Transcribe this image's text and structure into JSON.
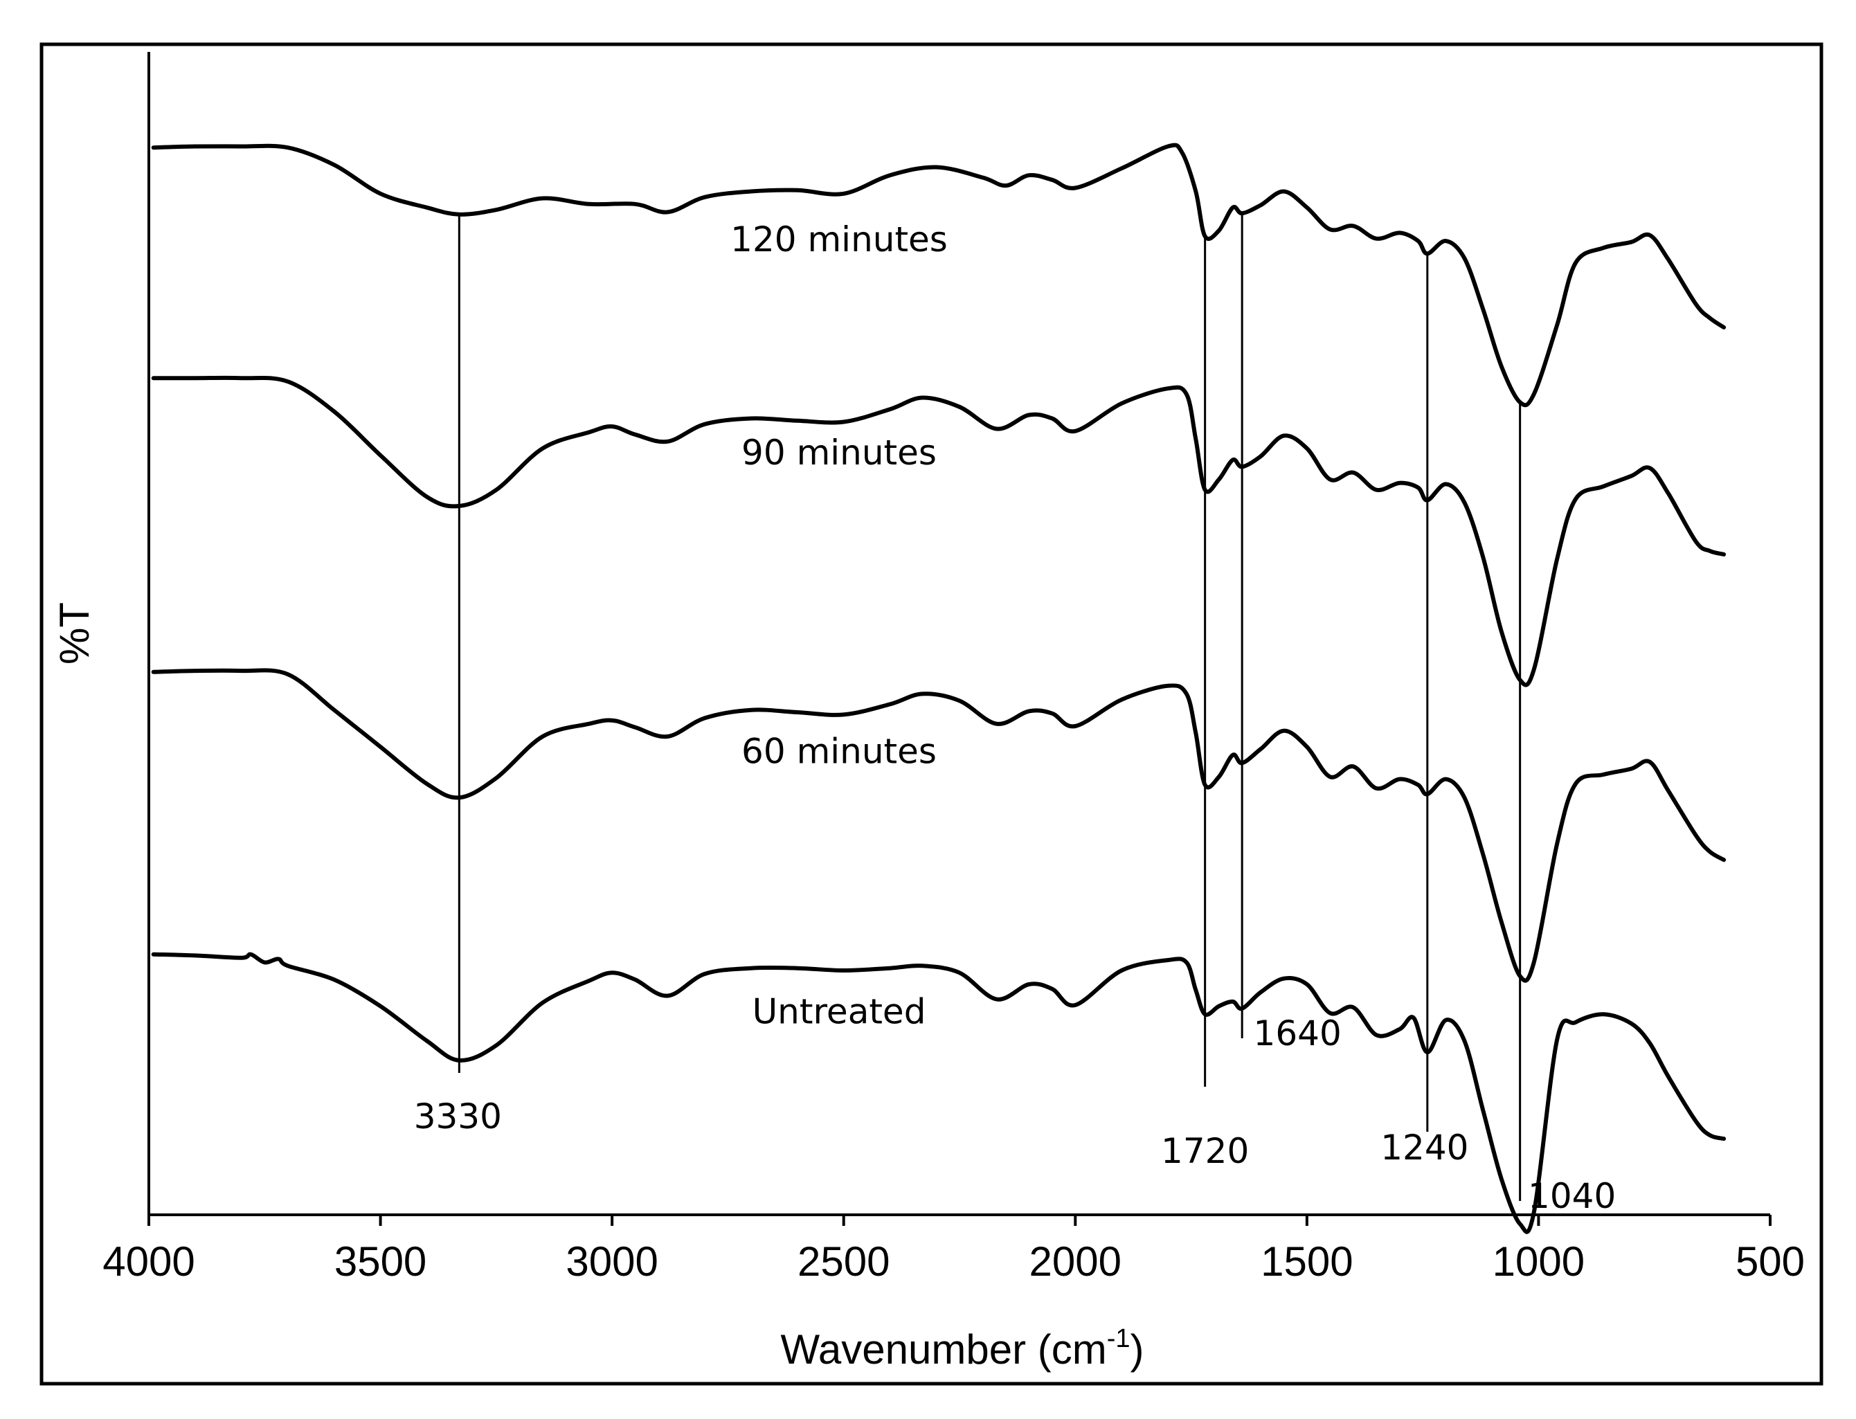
{
  "chart_data": {
    "type": "line",
    "title": "",
    "xlabel": "Wavenumber (cm",
    "xlabel_sup": "-1",
    "xlabel_close": ")",
    "ylabel": "%T",
    "xlim": [
      4000,
      500
    ],
    "x_reversed": true,
    "y_values_note": "arbitrary transmittance units, curves vertically offset",
    "ylim": [
      0,
      100
    ],
    "grid": false,
    "x_ticks": [
      4000,
      3500,
      3000,
      2500,
      2000,
      1500,
      1000,
      500
    ],
    "x_tick_labels": [
      "4000",
      "3500",
      "3000",
      "2500",
      "2000",
      "1500",
      "1000",
      "500"
    ],
    "series": [
      {
        "name": "120 minutes",
        "points": [
          [
            3990,
            92.0
          ],
          [
            3900,
            92.1
          ],
          [
            3800,
            92.1
          ],
          [
            3700,
            92.0
          ],
          [
            3600,
            90.5
          ],
          [
            3500,
            88.0
          ],
          [
            3400,
            86.8
          ],
          [
            3330,
            86.2
          ],
          [
            3250,
            86.6
          ],
          [
            3150,
            87.6
          ],
          [
            3050,
            87.1
          ],
          [
            2950,
            87.1
          ],
          [
            2880,
            86.4
          ],
          [
            2800,
            87.7
          ],
          [
            2700,
            88.2
          ],
          [
            2600,
            88.3
          ],
          [
            2500,
            88.0
          ],
          [
            2400,
            89.6
          ],
          [
            2300,
            90.3
          ],
          [
            2200,
            89.4
          ],
          [
            2150,
            88.7
          ],
          [
            2100,
            89.6
          ],
          [
            2050,
            89.2
          ],
          [
            2000,
            88.5
          ],
          [
            1900,
            90.2
          ],
          [
            1800,
            92.1
          ],
          [
            1770,
            91.6
          ],
          [
            1740,
            88.2
          ],
          [
            1720,
            84.3
          ],
          [
            1690,
            84.8
          ],
          [
            1660,
            86.8
          ],
          [
            1640,
            86.3
          ],
          [
            1600,
            87.0
          ],
          [
            1550,
            88.2
          ],
          [
            1500,
            86.8
          ],
          [
            1450,
            84.9
          ],
          [
            1400,
            85.2
          ],
          [
            1350,
            84.1
          ],
          [
            1300,
            84.6
          ],
          [
            1260,
            83.9
          ],
          [
            1240,
            82.8
          ],
          [
            1200,
            83.9
          ],
          [
            1160,
            82.4
          ],
          [
            1120,
            78.0
          ],
          [
            1080,
            73.0
          ],
          [
            1040,
            69.9
          ],
          [
            1010,
            70.6
          ],
          [
            960,
            76.6
          ],
          [
            920,
            82.0
          ],
          [
            860,
            83.3
          ],
          [
            800,
            83.8
          ],
          [
            760,
            84.4
          ],
          [
            720,
            82.3
          ],
          [
            660,
            78.4
          ],
          [
            630,
            77.2
          ],
          [
            600,
            76.4
          ]
        ]
      },
      {
        "name": "90 minutes",
        "points": [
          [
            3990,
            72.0
          ],
          [
            3900,
            72.0
          ],
          [
            3800,
            72.0
          ],
          [
            3700,
            71.7
          ],
          [
            3600,
            69.1
          ],
          [
            3500,
            65.3
          ],
          [
            3400,
            61.7
          ],
          [
            3330,
            60.9
          ],
          [
            3250,
            62.3
          ],
          [
            3150,
            65.9
          ],
          [
            3050,
            67.3
          ],
          [
            3000,
            67.8
          ],
          [
            2950,
            67.1
          ],
          [
            2880,
            66.5
          ],
          [
            2800,
            68.0
          ],
          [
            2700,
            68.5
          ],
          [
            2600,
            68.3
          ],
          [
            2500,
            68.2
          ],
          [
            2400,
            69.3
          ],
          [
            2330,
            70.3
          ],
          [
            2250,
            69.5
          ],
          [
            2170,
            67.6
          ],
          [
            2100,
            68.8
          ],
          [
            2050,
            68.5
          ],
          [
            2000,
            67.4
          ],
          [
            1900,
            69.8
          ],
          [
            1800,
            71.1
          ],
          [
            1760,
            70.6
          ],
          [
            1740,
            66.7
          ],
          [
            1720,
            62.3
          ],
          [
            1690,
            63.2
          ],
          [
            1660,
            64.9
          ],
          [
            1640,
            64.3
          ],
          [
            1600,
            65.2
          ],
          [
            1550,
            67.0
          ],
          [
            1500,
            65.9
          ],
          [
            1450,
            63.2
          ],
          [
            1400,
            63.8
          ],
          [
            1350,
            62.3
          ],
          [
            1300,
            62.9
          ],
          [
            1260,
            62.5
          ],
          [
            1240,
            61.4
          ],
          [
            1200,
            62.8
          ],
          [
            1160,
            61.2
          ],
          [
            1120,
            56.5
          ],
          [
            1080,
            50.0
          ],
          [
            1040,
            45.8
          ],
          [
            1010,
            46.7
          ],
          [
            960,
            56.3
          ],
          [
            920,
            61.5
          ],
          [
            860,
            62.6
          ],
          [
            800,
            63.5
          ],
          [
            760,
            64.2
          ],
          [
            720,
            62.0
          ],
          [
            660,
            57.8
          ],
          [
            630,
            57.0
          ],
          [
            600,
            56.7
          ]
        ]
      },
      {
        "name": "60 minutes",
        "points": [
          [
            3990,
            46.5
          ],
          [
            3900,
            46.6
          ],
          [
            3800,
            46.6
          ],
          [
            3700,
            46.3
          ],
          [
            3600,
            43.2
          ],
          [
            3500,
            40.0
          ],
          [
            3400,
            36.8
          ],
          [
            3330,
            35.6
          ],
          [
            3250,
            37.3
          ],
          [
            3150,
            40.9
          ],
          [
            3050,
            42.0
          ],
          [
            3000,
            42.3
          ],
          [
            2950,
            41.7
          ],
          [
            2880,
            40.9
          ],
          [
            2800,
            42.5
          ],
          [
            2700,
            43.2
          ],
          [
            2600,
            43.0
          ],
          [
            2500,
            42.8
          ],
          [
            2400,
            43.7
          ],
          [
            2330,
            44.6
          ],
          [
            2250,
            44.0
          ],
          [
            2170,
            42.0
          ],
          [
            2100,
            43.1
          ],
          [
            2050,
            42.9
          ],
          [
            2000,
            41.8
          ],
          [
            1900,
            44.1
          ],
          [
            1800,
            45.3
          ],
          [
            1760,
            44.6
          ],
          [
            1740,
            41.2
          ],
          [
            1720,
            36.7
          ],
          [
            1690,
            37.4
          ],
          [
            1660,
            39.3
          ],
          [
            1640,
            38.6
          ],
          [
            1600,
            39.8
          ],
          [
            1550,
            41.4
          ],
          [
            1500,
            40.0
          ],
          [
            1450,
            37.4
          ],
          [
            1400,
            38.3
          ],
          [
            1350,
            36.4
          ],
          [
            1300,
            37.2
          ],
          [
            1260,
            36.7
          ],
          [
            1240,
            35.9
          ],
          [
            1200,
            37.2
          ],
          [
            1160,
            35.6
          ],
          [
            1120,
            30.7
          ],
          [
            1080,
            24.8
          ],
          [
            1040,
            20.1
          ],
          [
            1010,
            21.3
          ],
          [
            960,
            31.6
          ],
          [
            920,
            36.8
          ],
          [
            860,
            37.6
          ],
          [
            800,
            38.1
          ],
          [
            760,
            38.7
          ],
          [
            720,
            36.2
          ],
          [
            660,
            32.3
          ],
          [
            630,
            30.9
          ],
          [
            600,
            30.2
          ]
        ]
      },
      {
        "name": "Untreated",
        "points": [
          [
            3990,
            22.0
          ],
          [
            3900,
            21.9
          ],
          [
            3800,
            21.7
          ],
          [
            3780,
            22.0
          ],
          [
            3750,
            21.3
          ],
          [
            3720,
            21.6
          ],
          [
            3700,
            21.0
          ],
          [
            3600,
            19.8
          ],
          [
            3500,
            17.5
          ],
          [
            3400,
            14.5
          ],
          [
            3330,
            12.8
          ],
          [
            3250,
            14.1
          ],
          [
            3150,
            17.8
          ],
          [
            3050,
            19.7
          ],
          [
            3000,
            20.4
          ],
          [
            2950,
            19.8
          ],
          [
            2880,
            18.4
          ],
          [
            2800,
            20.3
          ],
          [
            2700,
            20.8
          ],
          [
            2600,
            20.8
          ],
          [
            2500,
            20.6
          ],
          [
            2400,
            20.8
          ],
          [
            2330,
            21.0
          ],
          [
            2250,
            20.4
          ],
          [
            2170,
            18.1
          ],
          [
            2100,
            19.4
          ],
          [
            2050,
            19.0
          ],
          [
            2000,
            17.6
          ],
          [
            1900,
            20.6
          ],
          [
            1800,
            21.5
          ],
          [
            1760,
            21.3
          ],
          [
            1740,
            18.9
          ],
          [
            1720,
            16.8
          ],
          [
            1690,
            17.5
          ],
          [
            1660,
            17.9
          ],
          [
            1640,
            17.3
          ],
          [
            1600,
            18.7
          ],
          [
            1550,
            19.9
          ],
          [
            1500,
            19.4
          ],
          [
            1450,
            16.9
          ],
          [
            1400,
            17.4
          ],
          [
            1350,
            15.0
          ],
          [
            1300,
            15.5
          ],
          [
            1270,
            16.5
          ],
          [
            1240,
            13.5
          ],
          [
            1200,
            16.3
          ],
          [
            1160,
            14.5
          ],
          [
            1120,
            8.5
          ],
          [
            1080,
            2.5
          ],
          [
            1040,
            -1.4
          ],
          [
            1010,
            -0.4
          ],
          [
            960,
            14.6
          ],
          [
            920,
            16.1
          ],
          [
            860,
            16.8
          ],
          [
            800,
            16.0
          ],
          [
            760,
            14.3
          ],
          [
            720,
            11.4
          ],
          [
            660,
            7.5
          ],
          [
            630,
            6.3
          ],
          [
            600,
            6.0
          ]
        ]
      }
    ],
    "series_labels": [
      {
        "text": "120 minutes",
        "x": 2510,
        "y": 83.0
      },
      {
        "text": "90 minutes",
        "x": 2510,
        "y": 64.5
      },
      {
        "text": "60 minutes",
        "x": 2510,
        "y": 38.6
      },
      {
        "text": "Untreated",
        "x": 2510,
        "y": 16.0
      }
    ],
    "peak_markers": [
      {
        "x": 3330,
        "label": "3330"
      },
      {
        "x": 1720,
        "label": "1720"
      },
      {
        "x": 1640,
        "label": "1640"
      },
      {
        "x": 1240,
        "label": "1240"
      },
      {
        "x": 1040,
        "label": "1040"
      }
    ]
  }
}
